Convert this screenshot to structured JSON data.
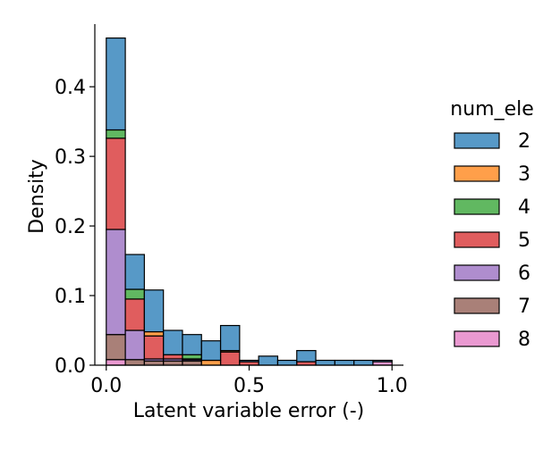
{
  "chart_data": {
    "type": "bar",
    "stacked": true,
    "xlabel": "Latent variable error (-)",
    "ylabel": "Density",
    "xlim": [
      -0.04,
      1.04
    ],
    "ylim": [
      0,
      0.49
    ],
    "xticks": [
      0.0,
      0.5,
      1.0
    ],
    "xtick_labels": [
      "0.0",
      "0.5",
      "1.0"
    ],
    "yticks": [
      0.0,
      0.1,
      0.2,
      0.3,
      0.4
    ],
    "ytick_labels": [
      "0.0",
      "0.1",
      "0.2",
      "0.3",
      "0.4"
    ],
    "grid": false,
    "legend": {
      "title": "num_ele",
      "placement": "right"
    },
    "bin_edges": [
      0.0,
      0.0667,
      0.1333,
      0.2,
      0.2667,
      0.3333,
      0.4,
      0.4667,
      0.5333,
      0.6,
      0.6667,
      0.7333,
      0.8,
      0.8667,
      0.9333,
      1.0
    ],
    "series": [
      {
        "name": "8",
        "color": "#e377c2",
        "values": [
          0.008,
          0,
          0,
          0,
          0,
          0,
          0,
          0,
          0,
          0,
          0,
          0,
          0,
          0,
          0.005
        ]
      },
      {
        "name": "7",
        "color": "#8c564b",
        "values": [
          0.036,
          0.008,
          0.006,
          0.006,
          0.006,
          0,
          0,
          0,
          0,
          0,
          0,
          0,
          0,
          0,
          0
        ]
      },
      {
        "name": "6",
        "color": "#9467bd",
        "values": [
          0.151,
          0.042,
          0.003,
          0.003,
          0.002,
          0,
          0,
          0,
          0,
          0,
          0,
          0,
          0,
          0,
          0
        ]
      },
      {
        "name": "5",
        "color": "#d62728",
        "values": [
          0.131,
          0.045,
          0.033,
          0.006,
          0.001,
          0,
          0.019,
          0.005,
          0,
          0,
          0.005,
          0,
          0,
          0,
          0
        ]
      },
      {
        "name": "4",
        "color": "#2ca02c",
        "values": [
          0.012,
          0.014,
          0,
          0,
          0.006,
          0,
          0,
          0,
          0,
          0,
          0,
          0,
          0,
          0,
          0
        ]
      },
      {
        "name": "3",
        "color": "#ff7f0e",
        "values": [
          0,
          0,
          0.006,
          0,
          0,
          0.007,
          0.002,
          0,
          0,
          0,
          0,
          0,
          0,
          0,
          0
        ]
      },
      {
        "name": "2",
        "color": "#1f77b4",
        "values": [
          0.132,
          0.05,
          0.06,
          0.035,
          0.029,
          0.028,
          0.036,
          0.002,
          0.013,
          0.007,
          0.016,
          0.007,
          0.007,
          0.007,
          0.002
        ]
      }
    ]
  }
}
